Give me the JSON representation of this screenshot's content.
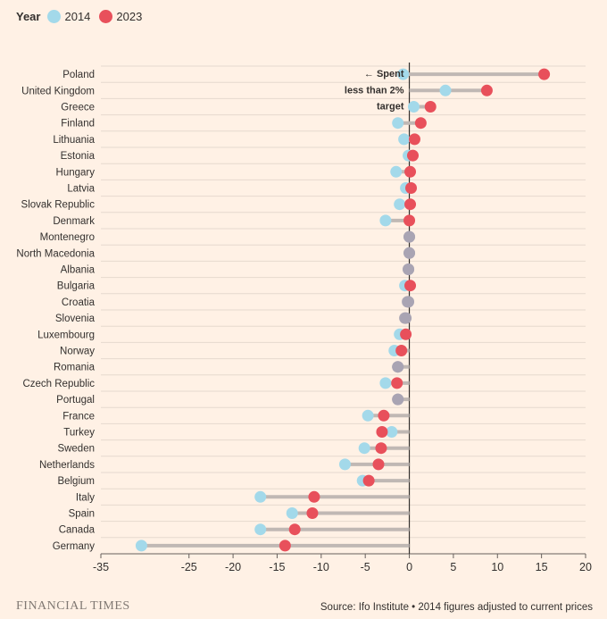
{
  "legend": {
    "title": "Year",
    "items": [
      {
        "label": "2014",
        "color": "#a3d9ea"
      },
      {
        "label": "2023",
        "color": "#e8505b"
      }
    ]
  },
  "chart_data": {
    "type": "dumbbell",
    "title": "",
    "xlabel": "",
    "ylabel": "",
    "xlim": [
      -35,
      20
    ],
    "xticks": [
      -35,
      -25,
      -20,
      -15,
      -10,
      -5,
      0,
      5,
      10,
      15,
      20
    ],
    "xtick_labels": [
      "-35",
      "-25",
      "-20",
      "-15",
      "-10",
      "-5",
      "0",
      "5",
      "10",
      "15",
      "20"
    ],
    "grid": true,
    "series_names": [
      "2014",
      "2023"
    ],
    "colors": {
      "2014": "#a3d9ea",
      "2023": "#e8505b",
      "connector": "#c0b8b4",
      "overlap": "#a9a4b3",
      "axis": "#33302e"
    },
    "categories": [
      "Poland",
      "United Kingdom",
      "Greece",
      "Finland",
      "Lithuania",
      "Estonia",
      "Hungary",
      "Latvia",
      "Slovak Republic",
      "Denmark",
      "Montenegro",
      "North Macedonia",
      "Albania",
      "Bulgaria",
      "Croatia",
      "Slovenia",
      "Luxembourg",
      "Norway",
      "Romania",
      "Czech Republic",
      "Portugal",
      "France",
      "Turkey",
      "Sweden",
      "Netherlands",
      "Belgium",
      "Italy",
      "Spain",
      "Canada",
      "Germany"
    ],
    "values_2014": [
      -0.7,
      4.1,
      0.5,
      -1.3,
      -0.6,
      -0.1,
      -1.5,
      -0.4,
      -1.1,
      -2.7,
      0.0,
      0.0,
      -0.1,
      -0.5,
      -0.1,
      -0.4,
      -1.1,
      -1.7,
      -1.3,
      -2.7,
      -1.3,
      -4.7,
      -2.0,
      -5.1,
      -7.3,
      -5.3,
      -16.9,
      -13.3,
      -16.9,
      -30.4
    ],
    "values_2023": [
      15.3,
      8.8,
      2.4,
      1.3,
      0.6,
      0.4,
      0.1,
      0.2,
      0.1,
      0.0,
      0.0,
      0.0,
      -0.1,
      0.1,
      -0.2,
      -0.5,
      -0.4,
      -0.9,
      -1.3,
      -1.4,
      -1.3,
      -2.9,
      -3.1,
      -3.2,
      -3.5,
      -4.6,
      -10.8,
      -11.0,
      -13.0,
      -14.1
    ],
    "annotation": {
      "lines": [
        "← Spent",
        "less than 2%",
        "target"
      ],
      "x": 0
    }
  },
  "footer": {
    "brand": "FINANCIAL TIMES",
    "source": "Source: Ifo Institute • 2014 figures adjusted to current prices"
  }
}
